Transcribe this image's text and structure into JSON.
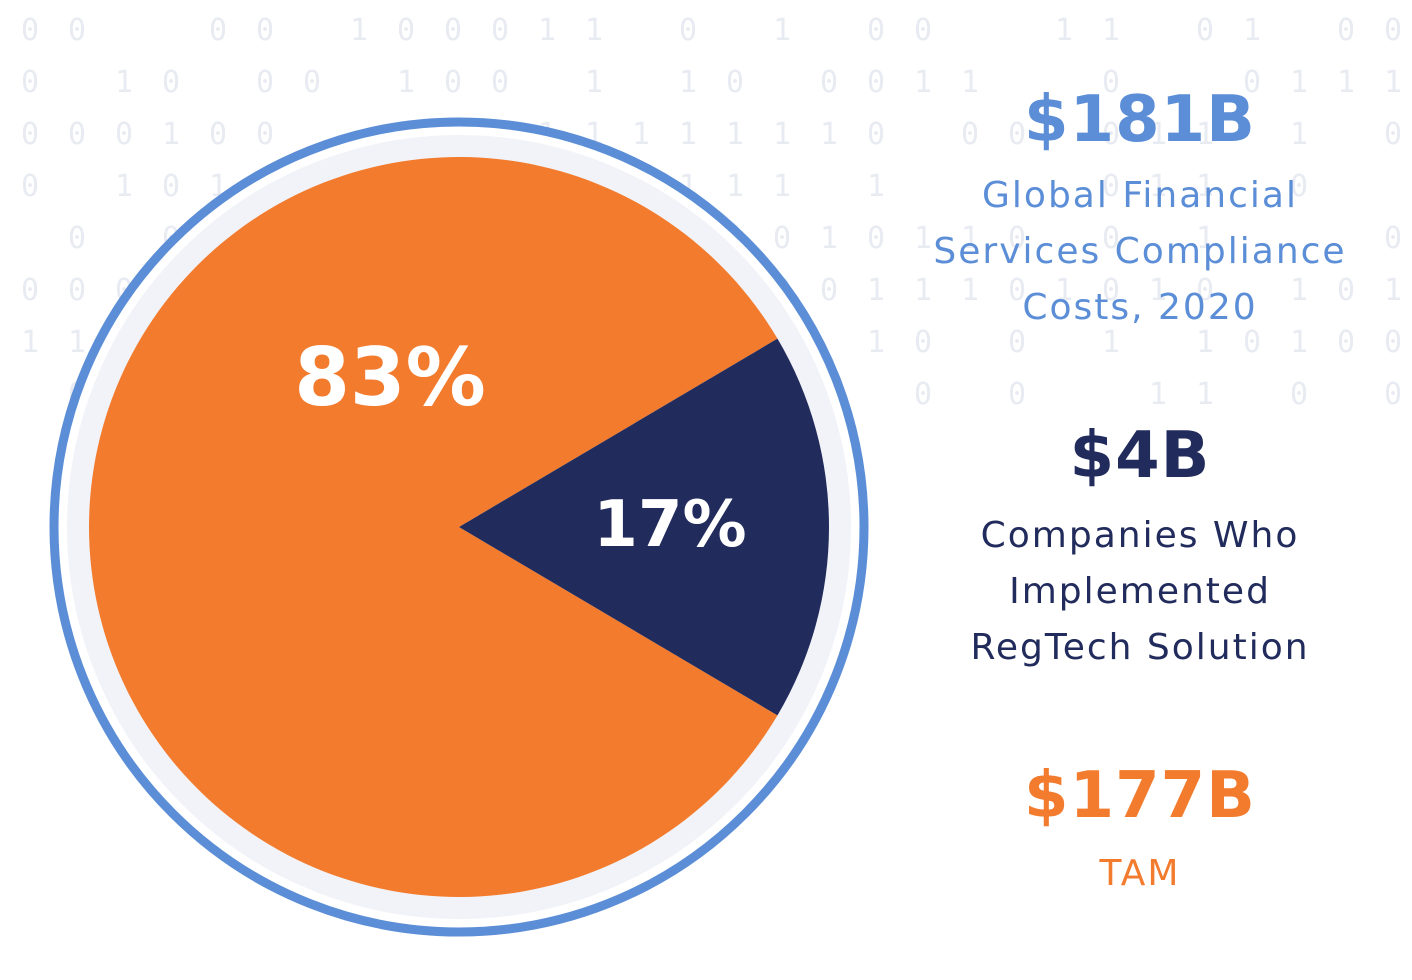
{
  "colors": {
    "orange": "#f27b2e",
    "navy": "#212b5c",
    "blue": "#5b8ed6",
    "ring": "#5b8ed6",
    "binary_digits": "#e8ebf1"
  },
  "chart_data": {
    "type": "pie",
    "slices": [
      {
        "label": "83%",
        "value": 83,
        "color": "#f27b2e"
      },
      {
        "label": "17%",
        "value": 17,
        "color": "#212b5c"
      }
    ]
  },
  "stats": [
    {
      "value": "$181B",
      "lines": [
        "Global Financial",
        "Services Compliance",
        "Costs, 2020"
      ],
      "color": "#5b8ed6"
    },
    {
      "value": "$4B",
      "lines": [
        "Companies Who",
        "Implemented",
        "RegTech Solution"
      ],
      "color": "#212b5c"
    },
    {
      "value": "$177B",
      "lines": [
        "TAM"
      ],
      "color": "#f27b2e"
    }
  ]
}
